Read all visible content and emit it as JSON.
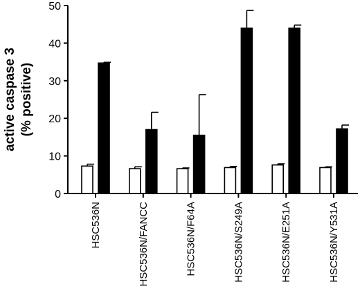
{
  "chart_data": {
    "type": "bar",
    "title": "",
    "xlabel": "",
    "ylabel": [
      "active caspase 3",
      "(% positive)"
    ],
    "ylim": [
      0,
      50
    ],
    "yticks": [
      0,
      10,
      20,
      30,
      40,
      50
    ],
    "categories": [
      "HSC536N",
      "HSC536N/FANCC",
      "HSC536N/F64A",
      "HSC536N/S249A",
      "HSC536N/E251A",
      "HSC536N/Y531A"
    ],
    "series": [
      {
        "fill": "#ffffff",
        "values": [
          7.3,
          6.6,
          6.6,
          6.9,
          7.6,
          6.9
        ],
        "errors": [
          0.5,
          0.5,
          0.2,
          0.3,
          0.3,
          0.2
        ]
      },
      {
        "fill": "#000000",
        "values": [
          34.7,
          17.0,
          15.5,
          44.0,
          44.0,
          17.2
        ],
        "errors": [
          0.2,
          4.6,
          10.8,
          4.7,
          0.8,
          1.0
        ]
      }
    ],
    "legend": "none",
    "grid": false
  }
}
